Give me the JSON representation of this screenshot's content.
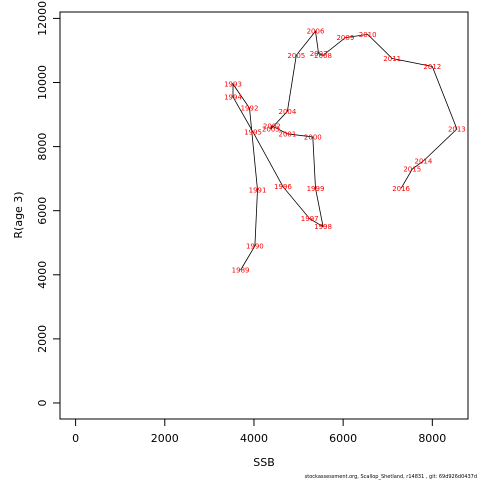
{
  "chart_data": {
    "type": "line",
    "xlabel": "SSB",
    "ylabel": "R(age 3)",
    "xlim": [
      -350,
      8800
    ],
    "ylim": [
      -500,
      12200
    ],
    "xticks": [
      0,
      2000,
      4000,
      6000,
      8000
    ],
    "yticks": [
      0,
      2000,
      4000,
      6000,
      8000,
      10000,
      12000
    ],
    "grid": false,
    "colors": {
      "line": "#000000",
      "labels": "#ff0000",
      "frame": "#000000"
    },
    "series": [
      {
        "points": [
          {
            "label": "1989",
            "x": 3700,
            "y": 4150
          },
          {
            "label": "1990",
            "x": 4020,
            "y": 4900
          },
          {
            "label": "1991",
            "x": 4080,
            "y": 6650
          },
          {
            "label": "1992",
            "x": 3900,
            "y": 9200
          },
          {
            "label": "1993",
            "x": 3530,
            "y": 9950
          },
          {
            "label": "1994",
            "x": 3530,
            "y": 9550
          },
          {
            "label": "1995",
            "x": 3980,
            "y": 8450
          },
          {
            "label": "1996",
            "x": 4650,
            "y": 6750
          },
          {
            "label": "1997",
            "x": 5250,
            "y": 5750
          },
          {
            "label": "1998",
            "x": 5550,
            "y": 5500
          },
          {
            "label": "1999",
            "x": 5380,
            "y": 6700
          },
          {
            "label": "2000",
            "x": 5320,
            "y": 8300
          },
          {
            "label": "2001",
            "x": 4750,
            "y": 8400
          },
          {
            "label": "2002",
            "x": 4400,
            "y": 8650
          },
          {
            "label": "2003",
            "x": 4380,
            "y": 8550
          },
          {
            "label": "2004",
            "x": 4750,
            "y": 9100
          },
          {
            "label": "2005",
            "x": 4950,
            "y": 10850
          },
          {
            "label": "2006",
            "x": 5380,
            "y": 11600
          },
          {
            "label": "2007",
            "x": 5450,
            "y": 10900
          },
          {
            "label": "2008",
            "x": 5550,
            "y": 10850
          },
          {
            "label": "2009",
            "x": 6050,
            "y": 11400
          },
          {
            "label": "2010",
            "x": 6550,
            "y": 11500
          },
          {
            "label": "2011",
            "x": 7100,
            "y": 10750
          },
          {
            "label": "2012",
            "x": 8000,
            "y": 10500
          },
          {
            "label": "2013",
            "x": 8550,
            "y": 8550
          },
          {
            "label": "2014",
            "x": 7800,
            "y": 7550
          },
          {
            "label": "2015",
            "x": 7550,
            "y": 7300
          },
          {
            "label": "2016",
            "x": 7300,
            "y": 6700
          }
        ]
      }
    ]
  },
  "footer": {
    "credit": "stockassessment.org,  Scallop_Shetland,  r14831  ,  git:  69d926d0437d"
  }
}
